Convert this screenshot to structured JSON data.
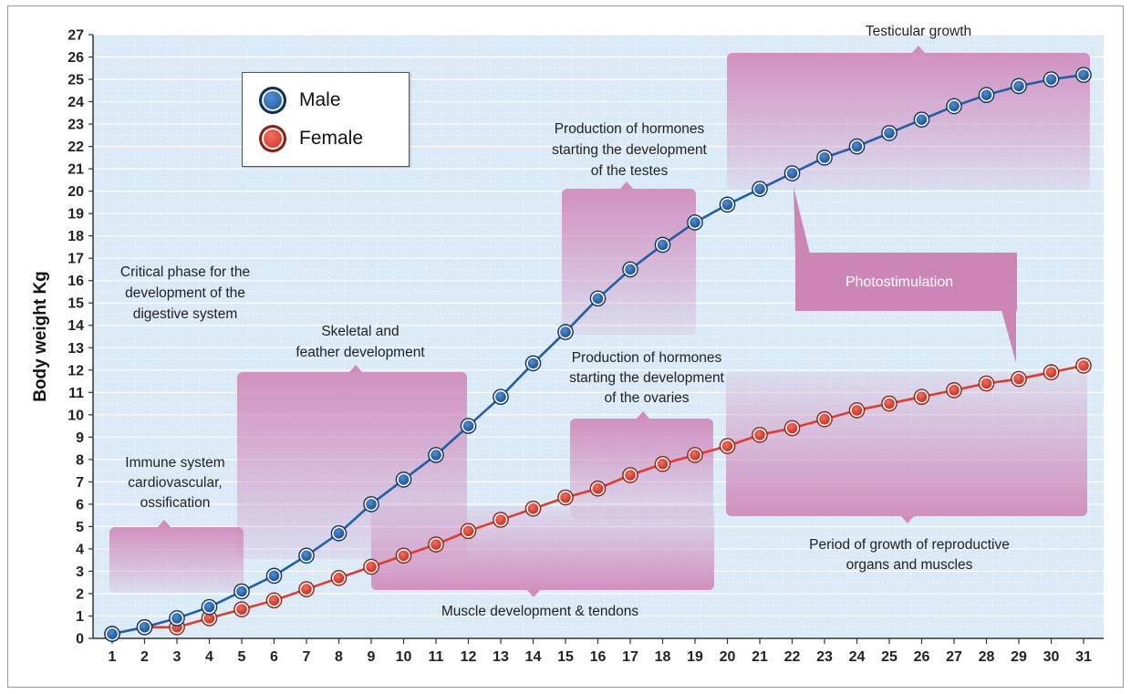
{
  "chart_data": {
    "type": "line",
    "ylabel": "Body weight Kg",
    "xlabel": "",
    "ylim": [
      0,
      27
    ],
    "yticks": [
      "0",
      "1",
      "2",
      "3",
      "4",
      "5",
      "6",
      "7",
      "8",
      "9",
      "10",
      "11",
      "12",
      "13",
      "14",
      "15",
      "16",
      "17",
      "18",
      "19",
      "20",
      "21",
      "22",
      "23",
      "24",
      "25",
      "26",
      "27"
    ],
    "x": [
      1,
      2,
      3,
      4,
      5,
      6,
      7,
      8,
      9,
      10,
      11,
      12,
      13,
      14,
      15,
      16,
      17,
      18,
      19,
      20,
      21,
      22,
      23,
      24,
      25,
      26,
      27,
      28,
      29,
      30,
      31
    ],
    "xticks": [
      "1",
      "2",
      "3",
      "4",
      "5",
      "6",
      "7",
      "8",
      "9",
      "10",
      "11",
      "12",
      "13",
      "14",
      "15",
      "16",
      "17",
      "18",
      "19",
      "20",
      "21",
      "22",
      "23",
      "24",
      "25",
      "26",
      "27",
      "28",
      "29",
      "30",
      "31"
    ],
    "grid": true,
    "legend_position": "top-left",
    "series": [
      {
        "name": "Male",
        "color": "#1f5fa8",
        "values": [
          0.2,
          0.5,
          0.9,
          1.4,
          2.1,
          2.8,
          3.7,
          4.7,
          6.0,
          7.1,
          8.2,
          9.5,
          10.8,
          12.3,
          13.7,
          15.2,
          16.5,
          17.6,
          18.6,
          19.4,
          20.1,
          20.8,
          21.5,
          22.0,
          22.6,
          23.2,
          23.8,
          24.3,
          24.7,
          25.0,
          25.2
        ]
      },
      {
        "name": "Female",
        "color": "#e03b2c",
        "values": [
          0.2,
          0.5,
          0.5,
          0.9,
          1.3,
          1.7,
          2.2,
          2.7,
          3.2,
          3.7,
          4.2,
          4.8,
          5.3,
          5.8,
          6.3,
          6.7,
          7.3,
          7.8,
          8.2,
          8.6,
          9.1,
          9.4,
          9.8,
          10.2,
          10.5,
          10.8,
          11.1,
          11.4,
          11.6,
          11.9,
          12.2
        ]
      }
    ],
    "annotations": [
      {
        "id": "immune",
        "lines": [
          "Immune system",
          "cardiovascular,",
          "ossification"
        ]
      },
      {
        "id": "digestive",
        "lines": [
          "Critical phase for the",
          "development of the",
          "digestive system"
        ]
      },
      {
        "id": "skeletal",
        "lines": [
          "Skeletal and",
          "feather development"
        ]
      },
      {
        "id": "muscle",
        "lines": [
          "Muscle development & tendons"
        ]
      },
      {
        "id": "hormone-testes",
        "lines": [
          "Production of hormones",
          "starting the development",
          "of the testes"
        ]
      },
      {
        "id": "hormone-ovaries",
        "lines": [
          "Production of hormones",
          "starting the development",
          "of the ovaries"
        ]
      },
      {
        "id": "testicular",
        "lines": [
          "Testicular growth"
        ]
      },
      {
        "id": "photostimulation",
        "lines": [
          "Photostimulation"
        ]
      },
      {
        "id": "reproductive",
        "lines": [
          "Period of growth of reproductive",
          "organs and muscles"
        ]
      }
    ]
  },
  "legend": {
    "items": [
      {
        "label": "Male",
        "color": "#1f5fa8"
      },
      {
        "label": "Female",
        "color": "#e03b2c"
      }
    ]
  },
  "colors": {
    "plot_background": "#dbeaf7",
    "grid": "#ffffff",
    "callout": "#d9a2c6",
    "callout_dark": "#c97cb0"
  }
}
